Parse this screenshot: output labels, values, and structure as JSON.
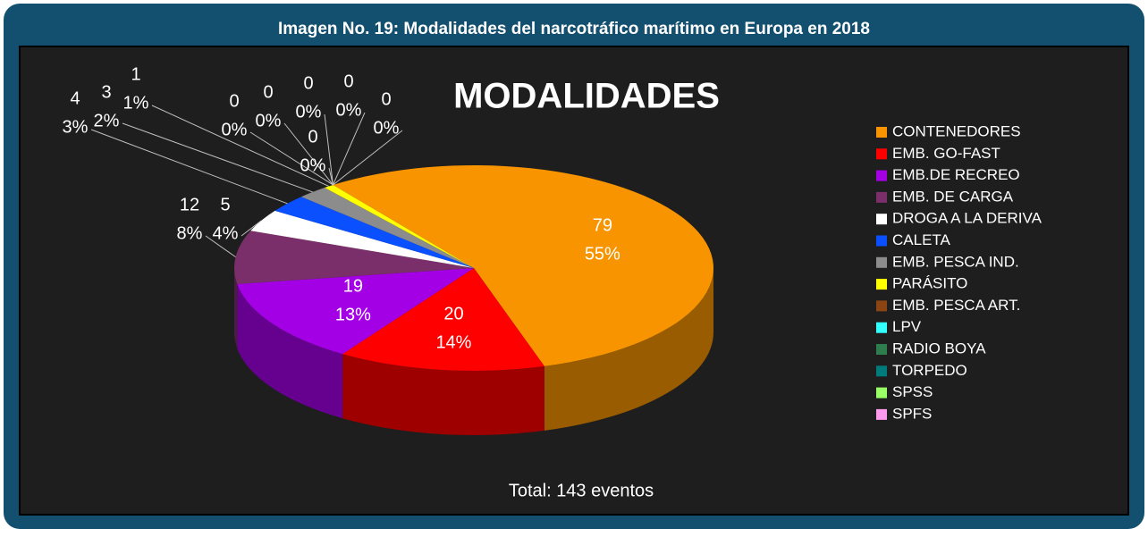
{
  "header": {
    "title": "Imagen No. 19: Modalidades del narcotráfico marítimo en Europa en 2018"
  },
  "chart_data": {
    "type": "pie",
    "title": "MODALIDADES",
    "annotation": "Total: 143 eventos",
    "categories": [
      "CONTENEDORES",
      "EMB. GO-FAST",
      "EMB.DE RECREO",
      "EMB. DE CARGA",
      "DROGA A LA DERIVA",
      "CALETA",
      "EMB. PESCA IND.",
      "PARÁSITO",
      "EMB. PESCA ART.",
      "LPV",
      "RADIO BOYA",
      "TORPEDO",
      "SPSS",
      "SPFS"
    ],
    "values": [
      79,
      20,
      19,
      12,
      5,
      4,
      3,
      1,
      0,
      0,
      0,
      0,
      0,
      0
    ],
    "percent_labels": [
      "55%",
      "14%",
      "13%",
      "8%",
      "4%",
      "3%",
      "2%",
      "1%",
      "0%",
      "0%",
      "0%",
      "0%",
      "0%",
      "0%"
    ],
    "colors": [
      "#f79400",
      "#ff0000",
      "#a400e6",
      "#7a2e6a",
      "#ffffff",
      "#0a50ff",
      "#8c8c8c",
      "#ffff00",
      "#8b4513",
      "#33ffff",
      "#2e7d4f",
      "#007b7b",
      "#99ff66",
      "#ff99ee"
    ],
    "legend": "right"
  }
}
